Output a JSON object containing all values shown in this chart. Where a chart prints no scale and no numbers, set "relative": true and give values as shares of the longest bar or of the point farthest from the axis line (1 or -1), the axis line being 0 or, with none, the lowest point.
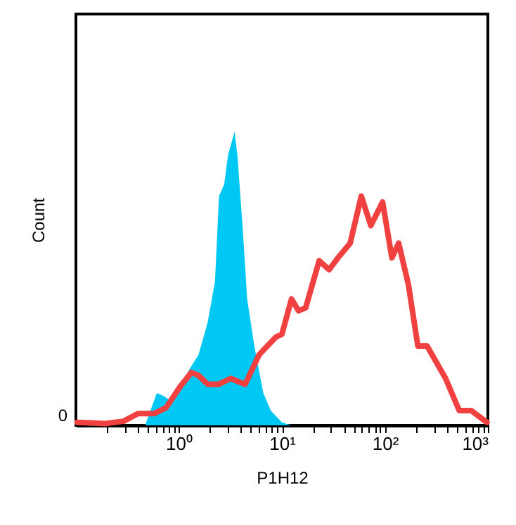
{
  "chart_data": {
    "type": "line",
    "relative": true,
    "xlabel": "P1H12",
    "ylabel": "Count",
    "log": "x",
    "grid": false,
    "line_style": "solid",
    "marker": "none",
    "xlim": [
      0.1,
      1000
    ],
    "xticks": [
      {
        "value": 0.2,
        "label": null
      },
      {
        "value": 0.3,
        "label": null
      },
      {
        "value": 0.4,
        "label": null
      },
      {
        "value": 0.5,
        "label": null
      },
      {
        "value": 0.6,
        "label": null
      },
      {
        "value": 0.7,
        "label": null
      },
      {
        "value": 0.8,
        "label": null
      },
      {
        "value": 0.9,
        "label": null
      },
      {
        "value": 1,
        "label": "10⁰"
      },
      {
        "value": 2,
        "label": null
      },
      {
        "value": 3,
        "label": null
      },
      {
        "value": 4,
        "label": null
      },
      {
        "value": 5,
        "label": null
      },
      {
        "value": 6,
        "label": null
      },
      {
        "value": 7,
        "label": null
      },
      {
        "value": 8,
        "label": null
      },
      {
        "value": 9,
        "label": null
      },
      {
        "value": 10,
        "label": "10¹"
      },
      {
        "value": 20,
        "label": null
      },
      {
        "value": 30,
        "label": null
      },
      {
        "value": 40,
        "label": null
      },
      {
        "value": 50,
        "label": null
      },
      {
        "value": 60,
        "label": null
      },
      {
        "value": 70,
        "label": null
      },
      {
        "value": 80,
        "label": null
      },
      {
        "value": 90,
        "label": null
      },
      {
        "value": 100,
        "label": "10²"
      },
      {
        "value": 200,
        "label": null
      },
      {
        "value": 300,
        "label": null
      },
      {
        "value": 400,
        "label": null
      },
      {
        "value": 500,
        "label": null
      },
      {
        "value": 600,
        "label": null
      },
      {
        "value": 700,
        "label": null
      },
      {
        "value": 800,
        "label": null
      },
      {
        "value": 900,
        "label": null
      },
      {
        "value": 1000,
        "label": "10³"
      }
    ],
    "annotations": [
      "0"
    ],
    "series": [
      {
        "type": "area",
        "color": "#00c8f5",
        "x": [
          0.47,
          0.61,
          0.71,
          0.87,
          1.26,
          1.55,
          1.9,
          2.24,
          2.45,
          2.75,
          3.0,
          3.47,
          3.7,
          4.2,
          4.6,
          5.4,
          6.6,
          7.8,
          10,
          12.3,
          980
        ],
        "values": [
          0,
          0.11,
          0.1,
          0.08,
          0.19,
          0.24,
          0.35,
          0.49,
          0.78,
          0.82,
          0.92,
          1,
          0.92,
          0.65,
          0.43,
          0.27,
          0.11,
          0.05,
          0.01,
          0,
          0
        ]
      },
      {
        "color": "#f04040",
        "x": [
          0.103,
          0.193,
          0.29,
          0.4,
          0.575,
          0.75,
          1.02,
          1.32,
          1.55,
          1.9,
          2.45,
          3.2,
          3.7,
          4.4,
          6.0,
          8.7,
          10,
          12.4,
          14.5,
          17,
          23,
          28.8,
          35,
          46,
          59,
          73,
          95,
          117,
          136,
          169,
          209,
          257,
          388,
          528,
          690,
          980
        ],
        "values": [
          0.01,
          0.006,
          0.014,
          0.04,
          0.04,
          0.06,
          0.13,
          0.18,
          0.17,
          0.14,
          0.14,
          0.16,
          0.15,
          0.14,
          0.24,
          0.3,
          0.31,
          0.43,
          0.39,
          0.4,
          0.56,
          0.53,
          0.57,
          0.62,
          0.78,
          0.68,
          0.76,
          0.57,
          0.62,
          0.48,
          0.27,
          0.27,
          0.16,
          0.05,
          0.05,
          0.01
        ]
      }
    ]
  }
}
